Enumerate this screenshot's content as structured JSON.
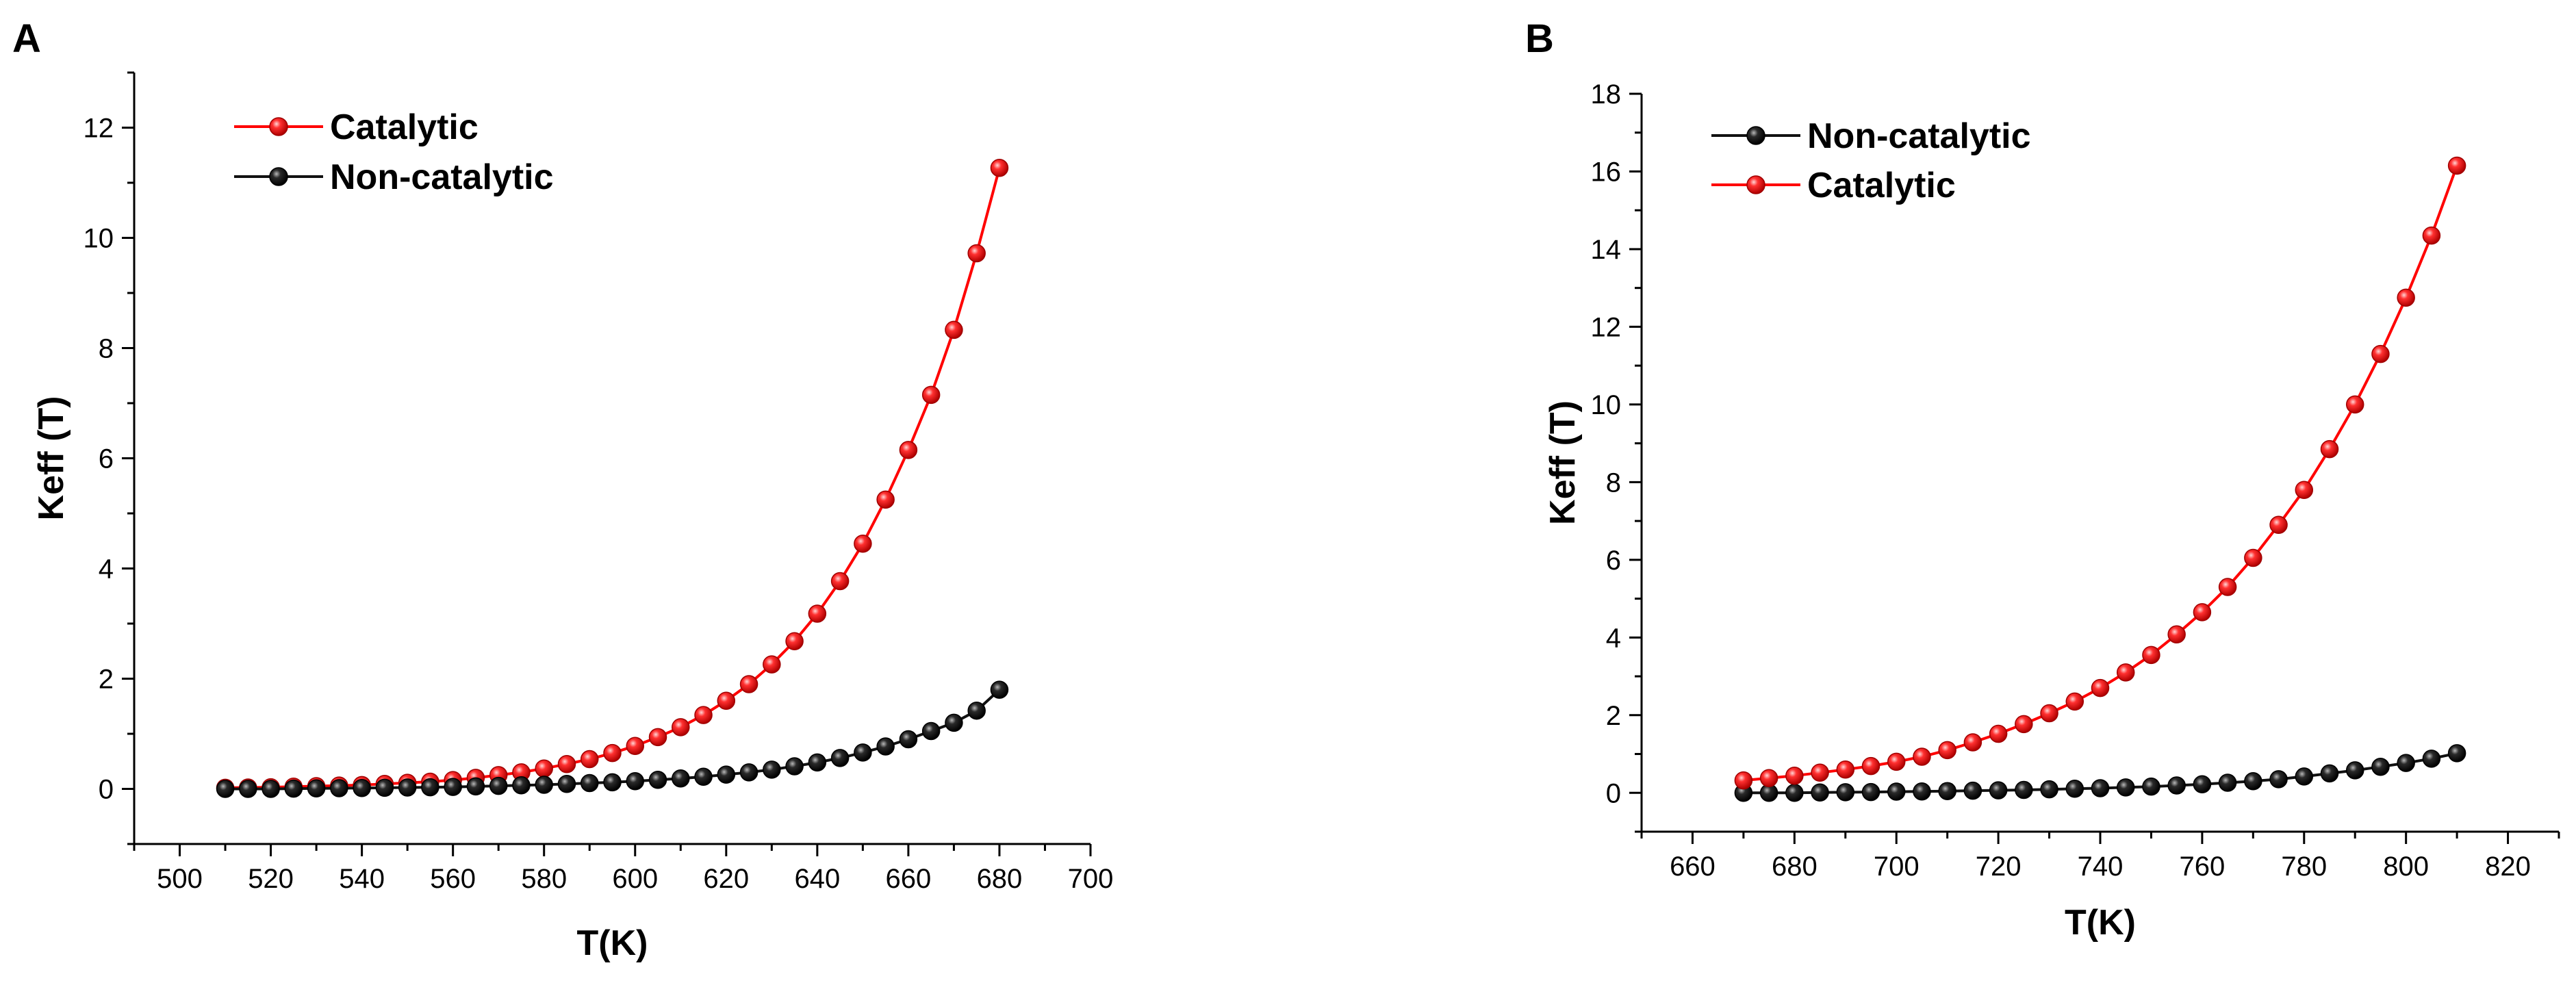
{
  "chart_data": [
    {
      "panel": "A",
      "type": "line",
      "xlabel": "T(K)",
      "ylabel": "Keff (T)",
      "xlim": [
        490,
        700
      ],
      "ylim": [
        -1,
        13
      ],
      "xticks": [
        "500",
        "520",
        "540",
        "560",
        "580",
        "600",
        "620",
        "640",
        "660",
        "680",
        "700"
      ],
      "yticks": [
        "0",
        "2",
        "4",
        "6",
        "8",
        "10",
        "12"
      ],
      "legend": [
        "Catalytic",
        "Non-catalytic"
      ],
      "legend_position": "top-left",
      "x": [
        510,
        515,
        520,
        525,
        530,
        535,
        540,
        545,
        550,
        555,
        560,
        565,
        570,
        575,
        580,
        585,
        590,
        595,
        600,
        605,
        610,
        615,
        620,
        625,
        630,
        635,
        640,
        645,
        650,
        655,
        660,
        665,
        670,
        675,
        680
      ],
      "series": [
        {
          "name": "Catalytic",
          "color": "#ff0000",
          "values": [
            0.02,
            0.025,
            0.03,
            0.04,
            0.05,
            0.06,
            0.07,
            0.09,
            0.11,
            0.13,
            0.16,
            0.2,
            0.25,
            0.3,
            0.37,
            0.45,
            0.54,
            0.65,
            0.78,
            0.94,
            1.12,
            1.34,
            1.6,
            1.9,
            2.26,
            2.68,
            3.18,
            3.77,
            4.45,
            5.25,
            6.15,
            7.15,
            8.33,
            9.72,
            11.27
          ]
        },
        {
          "name": "Non-catalytic",
          "color": "#111111",
          "values": [
            0.0,
            0.0,
            0.0,
            0.005,
            0.01,
            0.012,
            0.015,
            0.02,
            0.025,
            0.03,
            0.035,
            0.045,
            0.055,
            0.065,
            0.075,
            0.09,
            0.105,
            0.12,
            0.14,
            0.165,
            0.19,
            0.22,
            0.26,
            0.3,
            0.35,
            0.41,
            0.48,
            0.56,
            0.66,
            0.77,
            0.9,
            1.05,
            1.2,
            1.42,
            1.8
          ]
        }
      ]
    },
    {
      "panel": "B",
      "type": "line",
      "xlabel": "T(K)",
      "ylabel": "Keff (T)",
      "xlim": [
        650,
        830
      ],
      "ylim": [
        -1,
        18
      ],
      "xticks": [
        "660",
        "680",
        "700",
        "720",
        "740",
        "760",
        "780",
        "800",
        "820"
      ],
      "yticks": [
        "0",
        "2",
        "4",
        "6",
        "8",
        "10",
        "12",
        "14",
        "16",
        "18"
      ],
      "legend": [
        "Non-catalytic",
        "Catalytic"
      ],
      "legend_position": "top-left",
      "x": [
        670,
        675,
        680,
        685,
        690,
        695,
        700,
        705,
        710,
        715,
        720,
        725,
        730,
        735,
        740,
        745,
        750,
        755,
        760,
        765,
        770,
        775,
        780,
        785,
        790,
        795,
        800,
        805,
        810
      ],
      "series": [
        {
          "name": "Non-catalytic",
          "color": "#111111",
          "values": [
            0.0,
            0.0,
            0.0,
            0.01,
            0.015,
            0.02,
            0.03,
            0.035,
            0.045,
            0.055,
            0.065,
            0.075,
            0.09,
            0.105,
            0.12,
            0.14,
            0.16,
            0.19,
            0.22,
            0.26,
            0.3,
            0.35,
            0.42,
            0.5,
            0.58,
            0.67,
            0.77,
            0.88,
            1.02
          ]
        },
        {
          "name": "Catalytic",
          "color": "#ff0000",
          "values": [
            0.32,
            0.38,
            0.44,
            0.52,
            0.6,
            0.69,
            0.8,
            0.93,
            1.1,
            1.3,
            1.52,
            1.77,
            2.05,
            2.35,
            2.7,
            3.1,
            3.55,
            4.08,
            4.65,
            5.3,
            6.05,
            6.9,
            7.8,
            8.85,
            10.0,
            11.3,
            12.75,
            14.35,
            16.15
          ]
        }
      ]
    }
  ]
}
